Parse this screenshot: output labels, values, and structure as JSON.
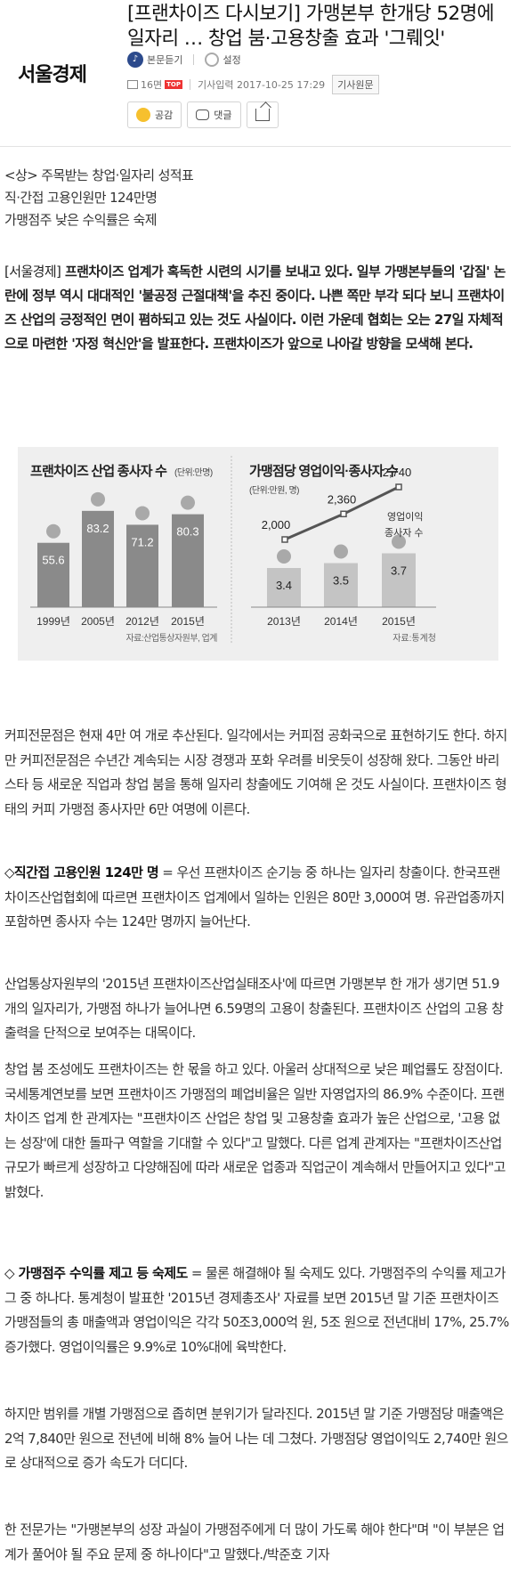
{
  "header": {
    "logo": "서울경제",
    "title": "[프랜차이즈 다시보기] 가맹본부 한개당 52명에 일자리 … 창업 붐·고용창출 효과 '그뤠잇'",
    "listen_label": "본문듣기",
    "settings_label": "설정",
    "page_label": "16면",
    "top_badge": "TOP",
    "date_label": "기사입력 2017-10-25 17:29",
    "original_label": "기사원문"
  },
  "actions": {
    "like_label": "공감",
    "comment_label": "댓글"
  },
  "subheads": [
    "<상> 주목받는 창업·일자리 성적표",
    "직·간접 고용인원만 124만명",
    "가맹점주 낮은 수익률은 숙제"
  ],
  "lead": {
    "dateline": "[서울경제]",
    "text": "프랜차이즈 업계가 혹독한 시련의 시기를 보내고 있다. 일부 가맹본부들의 '갑질' 논란에 정부 역시 대대적인 '불공정 근절대책'을 추진 중이다. 나쁜 쪽만 부각 되다 보니 프랜차이즈 산업의 긍정적인 면이 폄하되고 있는 것도 사실이다. 이런 가운데 협회는 오는 27일 자체적으로 마련한 '자정 혁신안'을 발표한다. 프랜차이즈가 앞으로 나아갈 방향을 모색해 본다."
  },
  "paragraphs": [
    {
      "head": "",
      "text": "커피전문점은 현재 4만 여 개로 추산된다. 일각에서는 커피점 공화국으로 표현하기도 한다. 하지만 커피전문점은 수년간 계속되는 시장 경쟁과 포화 우려를 비웃듯이 성장해 왔다. 그동안 바리스타 등 새로운 직업과 창업 붐을 통해 일자리 창출에도 기여해 온 것도 사실이다. 프랜차이즈 형태의 커피 가맹점 종사자만 6만 여명에 이른다."
    },
    {
      "head": "◇직간접 고용인원 124만 명",
      "text": " = 우선 프랜차이즈 순기능 중 하나는 일자리 창출이다. 한국프랜차이즈산업협회에 따르면 프랜차이즈 업계에서 일하는 인원은 80만 3,000여 명. 유관업종까지 포함하면 종사자 수는 124만 명까지 늘어난다."
    },
    {
      "head": "",
      "text": "산업통상자원부의 '2015년 프랜차이즈산업실태조사'에 따르면 가맹본부 한 개가 생기면 51.9개의 일자리가, 가맹점 하나가 늘어나면 6.59명의 고용이 창출된다. 프랜차이즈 산업의 고용 창출력을 단적으로 보여주는 대목이다."
    },
    {
      "head": "",
      "text": "창업 붐 조성에도 프랜차이즈는 한 몫을 하고 있다. 아울러 상대적으로 낮은 폐업률도 장점이다. 국세통계연보를 보면 프랜차이즈 가맹점의 폐업비율은 일반 자영업자의 86.9% 수준이다. 프랜차이즈 업계 한 관계자는 \"프랜차이즈 산업은 창업 및 고용창출 효과가 높은 산업으로, '고용 없는 성장'에 대한 돌파구 역할을 기대할 수 있다\"고 말했다. 다른 업계 관계자는 \"프랜차이즈산업 규모가 빠르게 성장하고 다양해짐에 따라 새로운 업종과 직업군이 계속해서 만들어지고 있다\"고 밝혔다."
    },
    {
      "head": "◇ 가맹점주 수익률 제고 등 숙제도",
      "text": " = 물론 해결해야 될 숙제도 있다. 가맹점주의 수익률 제고가 그 중 하나다. 통계청이 발표한 '2015년 경제총조사' 자료를 보면 2015년 말 기준 프랜차이즈 가맹점들의 총 매출액과 영업이익은 각각 50조3,000억 원, 5조 원으로 전년대비 17%, 25.7% 증가했다. 영업이익률은 9.9%로 10%대에 육박한다."
    },
    {
      "head": "",
      "text": "하지만 범위를 개별 가맹점으로 좁히면 분위기가 달라진다. 2015년 말 기준 가맹점당 매출액은 2억 7,840만 원으로 전년에 비해 8% 늘어 나는 데 그쳤다. 가맹점당 영업이익도 2,740만 원으로 상대적으로 증가 속도가 더디다."
    },
    {
      "head": "",
      "text": "한 전문가는 \"가맹본부의 성장 과실이 가맹점주에게 더 많이 가도록 해야 한다\"며 \"이 부분은 업계가 풀어야 될 주요 문제 중 하나이다\"고 말했다./박준호 기자"
    }
  ],
  "chart_data": [
    {
      "type": "bar",
      "title": "프랜차이즈 산업 종사자 수",
      "unit_label": "(단위:만명)",
      "categories": [
        "1999년",
        "2005년",
        "2012년",
        "2015년"
      ],
      "values": [
        55.6,
        83.2,
        71.2,
        80.3
      ],
      "value_labels": [
        "55.6",
        "83.2",
        "71.2",
        "80.3"
      ],
      "source": "자료:산업통상자원부, 업계",
      "colors": {
        "bar": "#8a8a8a",
        "dot": "#a9a9a9",
        "bg": "#efefef"
      }
    },
    {
      "type": "bar+line",
      "title": "가맹점당 영업이익·종사자 수",
      "unit_label": "(단위:만원, 명)",
      "categories": [
        "2013년",
        "2014년",
        "2015년"
      ],
      "bars": {
        "name": "종사자 수",
        "values": [
          3.4,
          3.5,
          3.7
        ],
        "labels": [
          "3.4",
          "3.5",
          "3.7"
        ]
      },
      "line": {
        "name": "영업이익",
        "values": [
          2000,
          2360,
          2740
        ],
        "labels": [
          "2,000",
          "2,360",
          "2,740"
        ]
      },
      "legend_line": "영업이익",
      "legend_bar": "종사자 수",
      "source": "자료:통계청",
      "colors": {
        "bar": "#c4c4c4",
        "dot": "#a9a9a9",
        "line": "#555555"
      }
    }
  ]
}
